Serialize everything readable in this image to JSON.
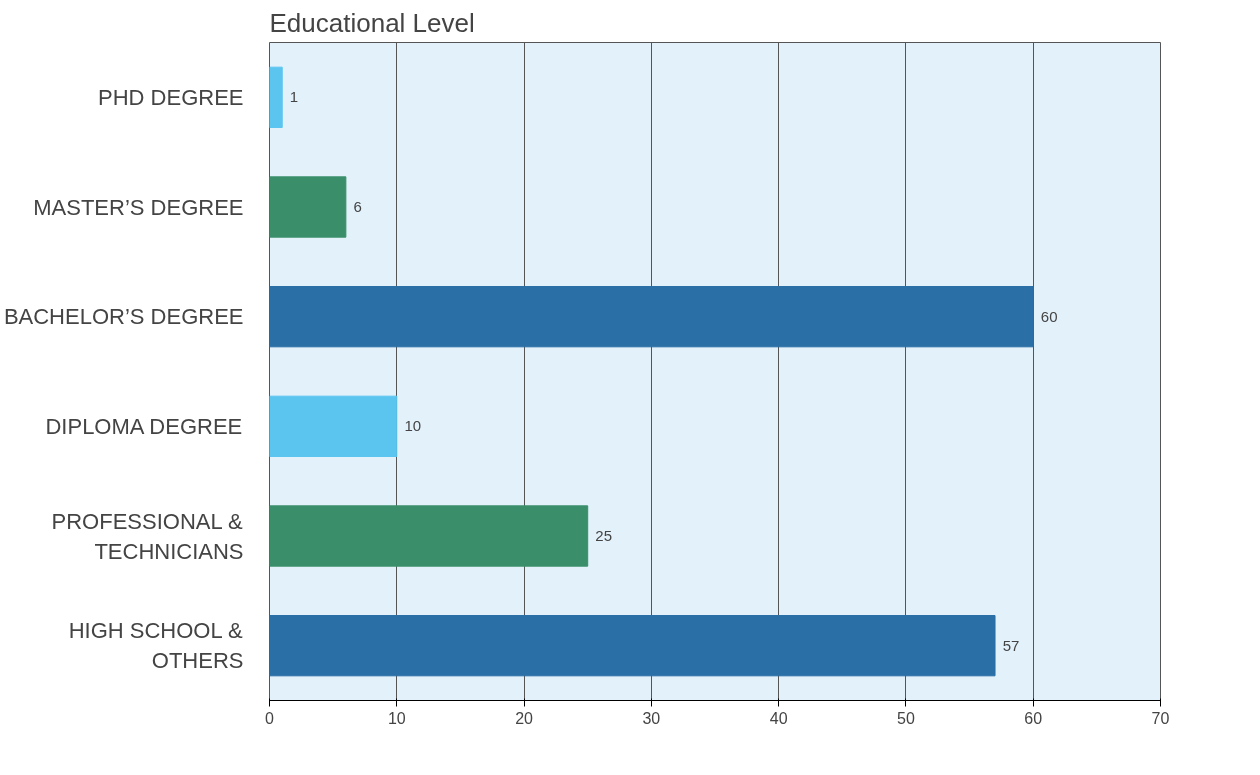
{
  "chart_data": {
    "type": "bar",
    "orientation": "horizontal",
    "title": "Educational Level",
    "categories": [
      "PHD DEGREE",
      "MASTER’S DEGREE",
      "BACHELOR’S DEGREE",
      "DIPLOMA DEGREE",
      "PROFESSIONAL &\nTECHNICIANS",
      "HIGH SCHOOL &\nOTHERS"
    ],
    "values": [
      1,
      6,
      60,
      10,
      25,
      57
    ],
    "colors": [
      "#5bc5f0",
      "#3a8f6a",
      "#2a6fa6",
      "#5bc5f0",
      "#3a8f6a",
      "#2a6fa6"
    ],
    "xlim": [
      0,
      70
    ],
    "xticks": [
      0,
      10,
      20,
      30,
      40,
      50,
      60,
      70
    ],
    "grid": "x",
    "data_labels": true
  }
}
